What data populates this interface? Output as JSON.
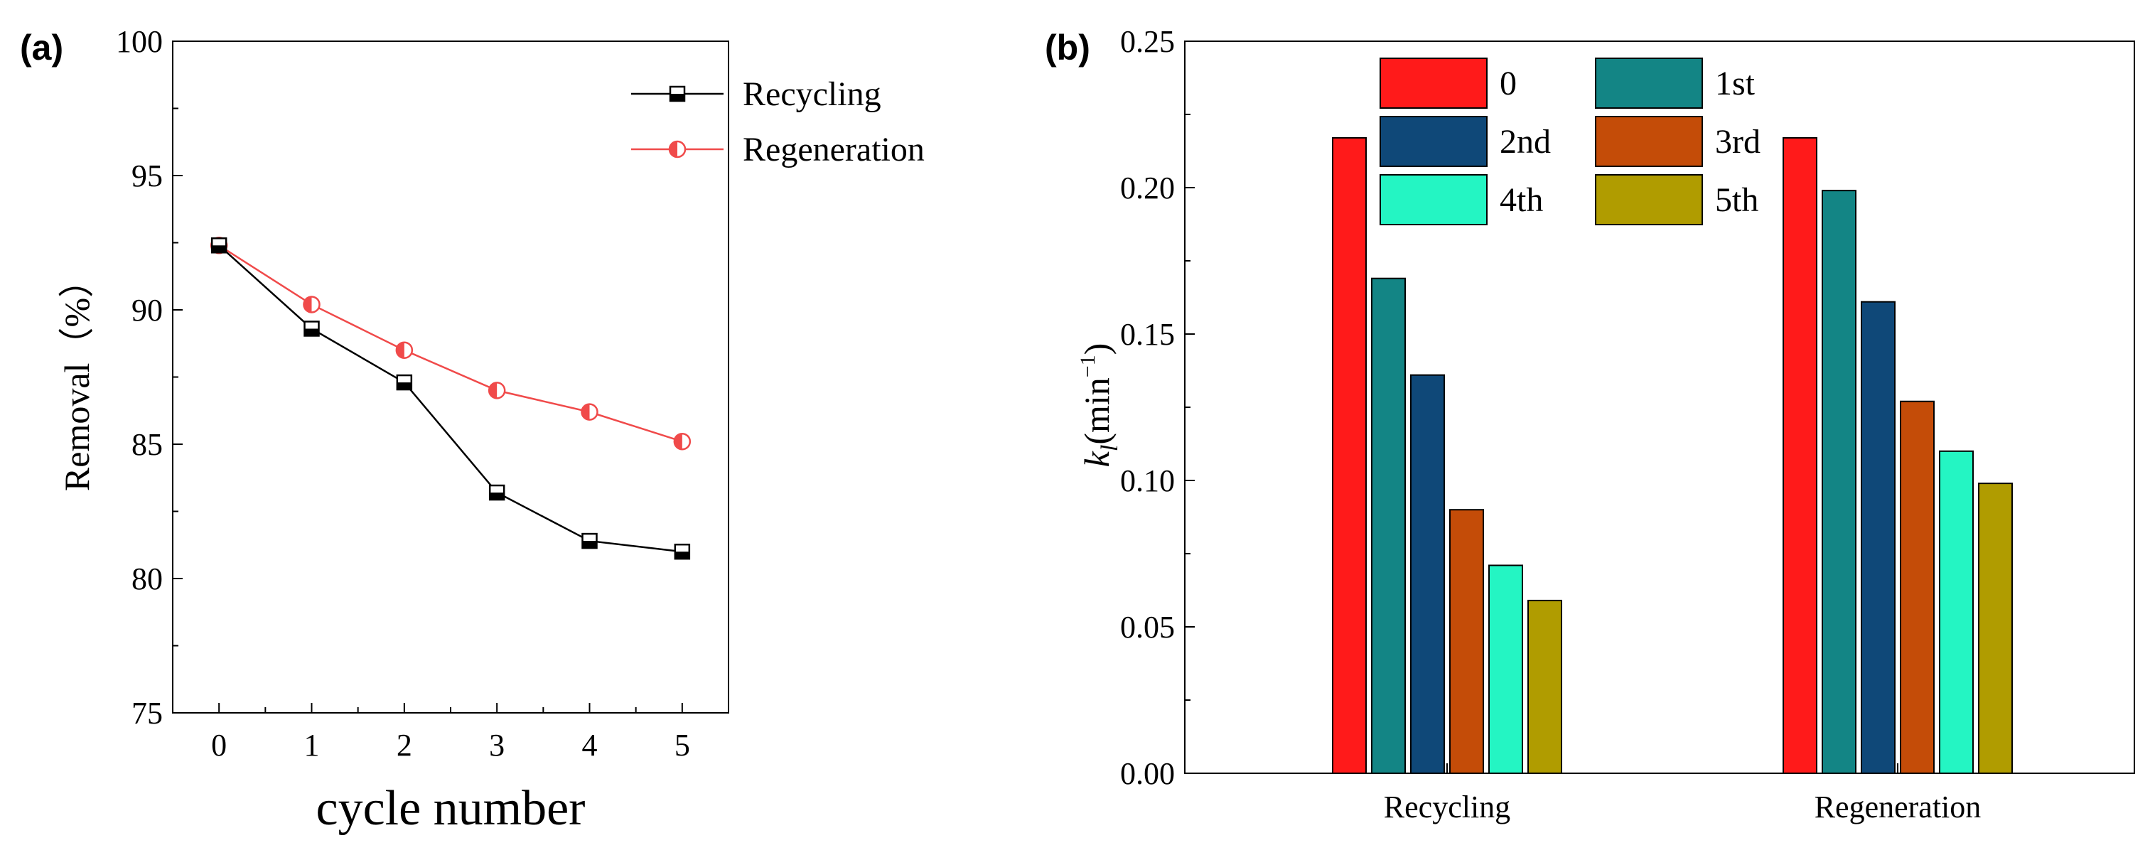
{
  "chart_data": [
    {
      "panel": "(a)",
      "type": "line",
      "xlabel": "cycle number",
      "ylabel": "Removal（%）",
      "x": [
        0,
        1,
        2,
        3,
        4,
        5
      ],
      "xlim": [
        -0.5,
        5.5
      ],
      "ylim": [
        75,
        100
      ],
      "xticks": [
        "0",
        "1",
        "2",
        "3",
        "4",
        "5"
      ],
      "yticks": [
        "75",
        "80",
        "85",
        "90",
        "95",
        "100"
      ],
      "legend_position": "top-right",
      "series": [
        {
          "name": "Recycling",
          "color": "#000000",
          "marker": "half-filled-square",
          "values": [
            92.4,
            89.3,
            87.3,
            83.2,
            81.4,
            81.0
          ]
        },
        {
          "name": "Regeneration",
          "color": "#f04a4a",
          "marker": "half-filled-circle",
          "values": [
            92.4,
            90.2,
            88.5,
            87.0,
            86.2,
            85.1
          ]
        }
      ]
    },
    {
      "panel": "(b)",
      "type": "bar",
      "ylabel_main": "k",
      "ylabel_sub": "l",
      "ylabel_rest": "(min",
      "ylabel_sup": "−1",
      "ylabel_close": ")",
      "ylim": [
        0,
        0.25
      ],
      "yticks": [
        "0.00",
        "0.05",
        "0.10",
        "0.15",
        "0.20",
        "0.25"
      ],
      "categories": [
        "Recycling",
        "Regeneration"
      ],
      "legend_position": "top",
      "series": [
        {
          "name": "0",
          "color": "#ff1a1a",
          "values": [
            0.217,
            0.217
          ]
        },
        {
          "name": "1st",
          "color": "#138585",
          "values": [
            0.169,
            0.199
          ]
        },
        {
          "name": "2nd",
          "color": "#0f4878",
          "values": [
            0.136,
            0.161
          ]
        },
        {
          "name": "3rd",
          "color": "#c44c08",
          "values": [
            0.09,
            0.127
          ]
        },
        {
          "name": "4th",
          "color": "#24f5c3",
          "values": [
            0.071,
            0.11
          ]
        },
        {
          "name": "5th",
          "color": "#b09c00",
          "values": [
            0.059,
            0.099
          ]
        }
      ]
    }
  ]
}
